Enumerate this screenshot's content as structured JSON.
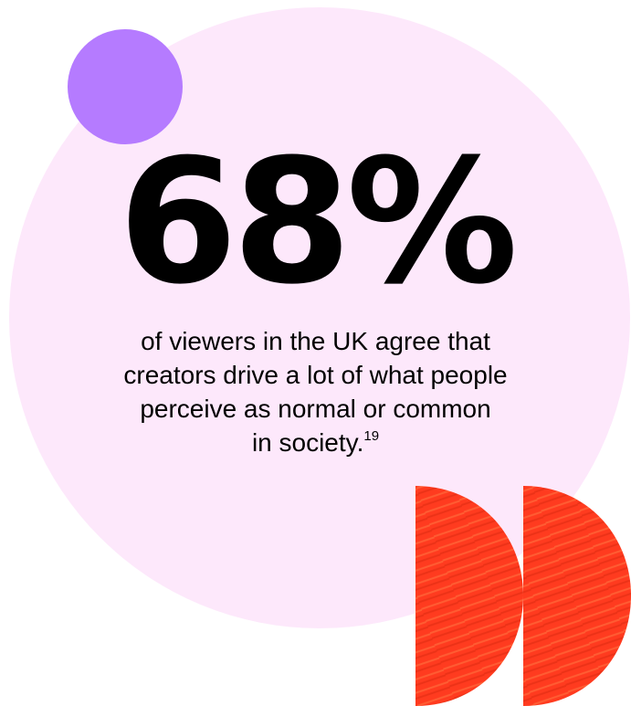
{
  "statistic": "68%",
  "caption": {
    "lines": [
      "of viewers in the UK agree that",
      "creators drive a lot of what people",
      "perceive as normal or common"
    ],
    "last_line": "in society.",
    "footnote": "19"
  },
  "colors": {
    "background_circle": "#fde8fb",
    "accent_dot": "#b57bff",
    "play_shapes": "#ff3b1f",
    "text": "#000000"
  }
}
